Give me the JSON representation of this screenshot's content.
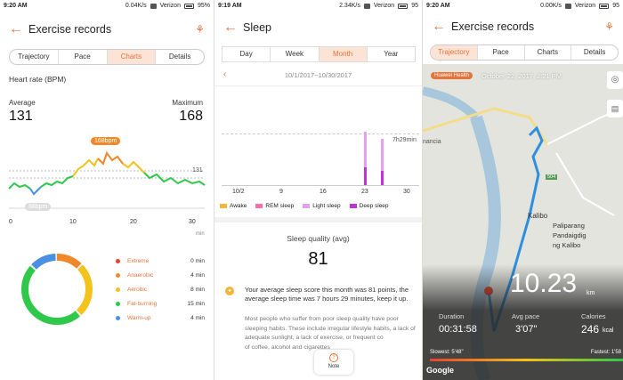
{
  "panel1": {
    "status": {
      "time": "9:20 AM",
      "speed": "0.04K/s",
      "carrier": "Verizon",
      "battery": "95%"
    },
    "title": "Exercise records",
    "tabs": [
      "Trajectory",
      "Pace",
      "Charts",
      "Details"
    ],
    "active_tab": "Charts",
    "section_title": "Heart rate (BPM)",
    "average_label": "Average",
    "average_value": "131",
    "maximum_label": "Maximum",
    "maximum_value": "168",
    "max_chip": "168bpm",
    "min_chip": "98bpm",
    "ref_label": "131",
    "x_ticks": [
      "0",
      "10",
      "20",
      "30"
    ],
    "x_unit": "min",
    "zones": [
      {
        "name": "Extreme",
        "value": "0 min",
        "color": "#e8432f"
      },
      {
        "name": "Anaerobic",
        "value": "4 min",
        "color": "#f0882a"
      },
      {
        "name": "Aerobic",
        "value": "8 min",
        "color": "#f3c21b"
      },
      {
        "name": "Fat-burning",
        "value": "15 min",
        "color": "#2fc84a"
      },
      {
        "name": "Warm-up",
        "value": "4 min",
        "color": "#4a90e2"
      }
    ]
  },
  "panel2": {
    "status": {
      "time": "9:19 AM",
      "speed": "2.34K/s",
      "carrier": "Verizon",
      "battery": "95"
    },
    "title": "Sleep",
    "tabs": [
      "Day",
      "Week",
      "Month",
      "Year"
    ],
    "active_tab": "Month",
    "date_range": "10/1/2017~10/30/2017",
    "bar_label": "7h29min",
    "x_ticks": [
      "10/2",
      "9",
      "16",
      "23",
      "30"
    ],
    "legend": [
      {
        "name": "Awake",
        "color": "#f3b53a"
      },
      {
        "name": "REM sleep",
        "color": "#f36fae"
      },
      {
        "name": "Light sleep",
        "color": "#e6a0f0"
      },
      {
        "name": "Deep sleep",
        "color": "#c232d9"
      }
    ],
    "quality_label": "Sleep quality (avg)",
    "quality_value": "81",
    "summary": "Your average sleep score this month was 81 points, the average sleep time was 7 hours 29 minutes, keep it up.",
    "tip": "Most people who suffer from poor sleep quality have poor sleeping habits. These include irregular lifestyle habits, a lack of adequate sunlight, a lack of exercise, or frequent co                              of coffee, alcohol and cigarettes",
    "note_label": "Note"
  },
  "panel3": {
    "status": {
      "time": "9:20 AM",
      "speed": "0.00K/s",
      "carrier": "Verizon",
      "battery": "95"
    },
    "title": "Exercise records",
    "tabs": [
      "Trajectory",
      "Pace",
      "Charts",
      "Details"
    ],
    "active_tab": "Trajectory",
    "badge": "Huawei Health",
    "datetime": "October 22, 2017, 2:21 PM",
    "map_labels": {
      "a": "nancia",
      "b": "Kalibo",
      "c": "Paliparang",
      "d": "Pandaigdig",
      "e": "ng Kalibo",
      "f": "504"
    },
    "distance": "10.23",
    "distance_unit": "km",
    "duration_label": "Duration",
    "duration_value": "00:31:58",
    "pace_label": "Avg pace",
    "pace_value": "3'07\"",
    "calories_label": "Calories",
    "calories_value": "246",
    "calories_unit": "kcal",
    "slowest": "Slowest: 5'48\"",
    "fastest": "Fastest: 1'58",
    "google": "Google"
  }
}
